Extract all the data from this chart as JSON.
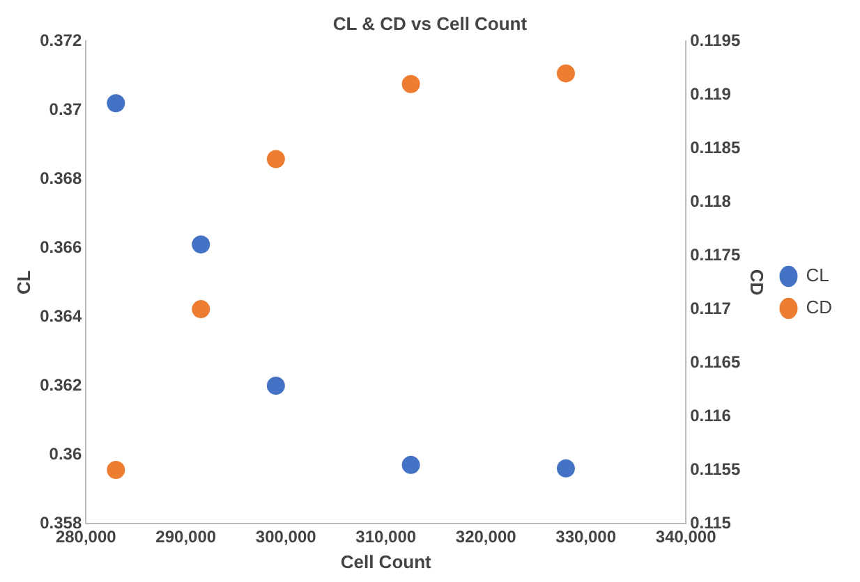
{
  "chart_data": {
    "type": "scatter",
    "title": "CL & CD vs Cell Count",
    "xlabel": "Cell Count",
    "ylabel": "CL",
    "y2label": "CD",
    "xlim": [
      280000,
      340000
    ],
    "xticks": [
      {
        "value": 280000,
        "label": "280,000"
      },
      {
        "value": 290000,
        "label": "290,000"
      },
      {
        "value": 300000,
        "label": "300,000"
      },
      {
        "value": 310000,
        "label": "310,000"
      },
      {
        "value": 320000,
        "label": "320,000"
      },
      {
        "value": 330000,
        "label": "330,000"
      },
      {
        "value": 340000,
        "label": "340,000"
      }
    ],
    "ylim": [
      0.358,
      0.372
    ],
    "yticks": [
      0.358,
      0.36,
      0.362,
      0.364,
      0.366,
      0.368,
      0.37,
      0.372
    ],
    "y2lim": [
      0.115,
      0.1195
    ],
    "y2ticks": [
      0.115,
      0.1155,
      0.116,
      0.1165,
      0.117,
      0.1175,
      0.118,
      0.1185,
      0.119,
      0.1195
    ],
    "x": [
      283000,
      291500,
      299000,
      312500,
      328000
    ],
    "series": [
      {
        "name": "CL",
        "color": "#4472c4",
        "values": [
          0.3702,
          0.3661,
          0.362,
          0.3597,
          0.3596
        ]
      },
      {
        "name": "CD",
        "color": "#ed7d31",
        "values": [
          0.1155,
          0.117,
          0.1184,
          0.1191,
          0.1192
        ],
        "axis": "y2"
      }
    ],
    "legend": "right",
    "marker": "circle",
    "grid": false
  }
}
